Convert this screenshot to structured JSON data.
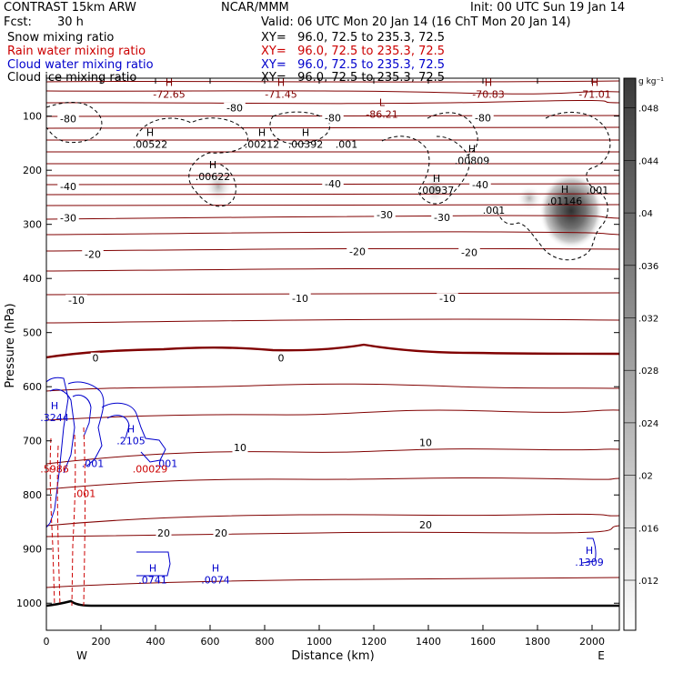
{
  "header": {
    "title": "CONTRAST 15km ARW",
    "center": "NCAR/MMM",
    "init": "Init: 00 UTC Sun 19 Jan 14",
    "fcst_label": "Fcst:",
    "fcst_value": "30 h",
    "valid": "Valid: 06 UTC Mon 20 Jan 14 (16 ChT Mon 20 Jan 14)",
    "fields": [
      {
        "name": "Snow mixing ratio",
        "xy": "XY=   96.0, 72.5 to 235.3, 72.5",
        "color": "#000000"
      },
      {
        "name": "Rain water mixing ratio",
        "xy": "XY=   96.0, 72.5 to 235.3, 72.5",
        "color": "#cc0000"
      },
      {
        "name": "Cloud water mixing ratio",
        "xy": "XY=   96.0, 72.5 to 235.3, 72.5",
        "color": "#0000cc"
      },
      {
        "name": "Cloud ice mixing ratio",
        "xy": "XY=   96.0, 72.5 to 235.3, 72.5",
        "color": "#000000"
      }
    ]
  },
  "chart_data": {
    "type": "cross-section",
    "xlabel": "Distance (km)",
    "ylabel": "Pressure (hPa)",
    "xlim": [
      0,
      2100
    ],
    "ylim": [
      1050,
      30
    ],
    "x_ticks": [
      0,
      200,
      400,
      600,
      800,
      1000,
      1200,
      1400,
      1600,
      1800,
      2000
    ],
    "y_ticks": [
      100,
      200,
      300,
      400,
      500,
      600,
      700,
      800,
      900,
      1000
    ],
    "end_labels": {
      "west": "W",
      "east": "E"
    },
    "colorbar": {
      "units": "g kg⁻¹",
      "ticks": [
        ".012",
        ".016",
        ".02",
        ".024",
        ".028",
        ".032",
        ".036",
        ".04",
        ".044",
        ".048"
      ]
    },
    "temperature_isotherms_label": [
      {
        "value": "-80",
        "x": 80,
        "p": 105
      },
      {
        "value": "-80",
        "x": 690,
        "p": 85
      },
      {
        "value": "-80",
        "x": 1050,
        "p": 103
      },
      {
        "value": "-80",
        "x": 1600,
        "p": 103
      },
      {
        "value": "-40",
        "x": 80,
        "p": 230
      },
      {
        "value": "-40",
        "x": 1050,
        "p": 225
      },
      {
        "value": "-40",
        "x": 1590,
        "p": 227
      },
      {
        "value": "-30",
        "x": 80,
        "p": 288
      },
      {
        "value": "-30",
        "x": 1240,
        "p": 282
      },
      {
        "value": "-30",
        "x": 1450,
        "p": 287
      },
      {
        "value": "-20",
        "x": 170,
        "p": 355
      },
      {
        "value": "-20",
        "x": 1140,
        "p": 350
      },
      {
        "value": "-20",
        "x": 1550,
        "p": 352
      },
      {
        "value": "-10",
        "x": 110,
        "p": 440
      },
      {
        "value": "-10",
        "x": 930,
        "p": 437
      },
      {
        "value": "-10",
        "x": 1470,
        "p": 437
      },
      {
        "value": "0",
        "x": 180,
        "p": 547
      },
      {
        "value": "0",
        "x": 860,
        "p": 547
      },
      {
        "value": "10",
        "x": 710,
        "p": 712
      },
      {
        "value": "10",
        "x": 1390,
        "p": 703
      },
      {
        "value": "20",
        "x": 430,
        "p": 870
      },
      {
        "value": "20",
        "x": 640,
        "p": 870
      },
      {
        "value": "20",
        "x": 1390,
        "p": 855
      }
    ],
    "extrema_labels": [
      {
        "kind": "H",
        "value": "-72.65",
        "x": 450,
        "p": 48,
        "color": "#800000"
      },
      {
        "kind": "H",
        "value": "-71.45",
        "x": 860,
        "p": 48,
        "color": "#800000"
      },
      {
        "kind": "L",
        "value": "-86.21",
        "x": 1230,
        "p": 85,
        "color": "#800000"
      },
      {
        "kind": "H",
        "value": "-70.83",
        "x": 1620,
        "p": 48,
        "color": "#800000"
      },
      {
        "kind": "H",
        "value": "-71.01",
        "x": 2010,
        "p": 48,
        "color": "#800000"
      },
      {
        "kind": "H",
        "value": ".00522",
        "x": 380,
        "p": 140,
        "color": "#000000"
      },
      {
        "kind": "H",
        "value": ".00212",
        "x": 790,
        "p": 140,
        "color": "#000000"
      },
      {
        "kind": "H",
        "value": ".00392",
        "x": 950,
        "p": 140,
        "color": "#000000"
      },
      {
        "kind": "",
        "value": ".001",
        "x": 1100,
        "p": 140,
        "color": "#000000"
      },
      {
        "kind": "H",
        "value": ".00809",
        "x": 1560,
        "p": 170,
        "color": "#000000"
      },
      {
        "kind": "H",
        "value": ".00622",
        "x": 610,
        "p": 200,
        "color": "#000000"
      },
      {
        "kind": "H",
        "value": ".00937",
        "x": 1430,
        "p": 225,
        "color": "#000000"
      },
      {
        "kind": "H",
        "value": ".01146",
        "x": 1900,
        "p": 245,
        "color": "#000000"
      },
      {
        "kind": "",
        "value": ".001",
        "x": 2020,
        "p": 225,
        "color": "#000000"
      },
      {
        "kind": "",
        "value": ".001",
        "x": 1640,
        "p": 262,
        "color": "#000000"
      },
      {
        "kind": "H",
        "value": ".3244",
        "x": 30,
        "p": 645,
        "color": "#0000cc"
      },
      {
        "kind": "H",
        "value": ".2105",
        "x": 310,
        "p": 688,
        "color": "#0000cc"
      },
      {
        "kind": "",
        "value": ".001",
        "x": 170,
        "p": 730,
        "color": "#0000cc"
      },
      {
        "kind": "",
        "value": ".001",
        "x": 440,
        "p": 730,
        "color": "#0000cc"
      },
      {
        "kind": "",
        "value": ".5986",
        "x": 30,
        "p": 740,
        "color": "#cc0000"
      },
      {
        "kind": "",
        "value": ".00029",
        "x": 380,
        "p": 740,
        "color": "#cc0000"
      },
      {
        "kind": "",
        "value": ".001",
        "x": 140,
        "p": 785,
        "color": "#cc0000"
      },
      {
        "kind": "H",
        "value": ".0741",
        "x": 390,
        "p": 945,
        "color": "#0000cc"
      },
      {
        "kind": "H",
        "value": ".0074",
        "x": 620,
        "p": 945,
        "color": "#0000cc"
      },
      {
        "kind": "H",
        "value": ".1309",
        "x": 1990,
        "p": 912,
        "color": "#0000cc"
      }
    ]
  }
}
